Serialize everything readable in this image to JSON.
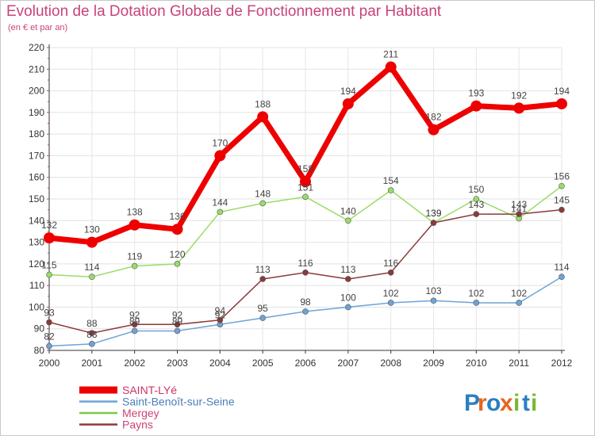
{
  "header": {
    "title": "Evolution de la Dotation Globale de Fonctionnement par Habitant",
    "subtitle": "(en € et par an)"
  },
  "logo": {
    "letters": [
      "P",
      "r",
      "o",
      "x",
      "i",
      "t",
      "i"
    ],
    "colors": [
      "#2a7fc1",
      "#e8641e",
      "#2a7fc1",
      "#e8641e",
      "#7ab82f",
      "#2a7fc1",
      "#7ab82f"
    ]
  },
  "chart_data": {
    "type": "line",
    "title": "Evolution de la Dotation Globale de Fonctionnement par Habitant",
    "subtitle": "(en € et par an)",
    "x": [
      "2000",
      "2001",
      "2002",
      "2003",
      "2004",
      "2005",
      "2006",
      "2007",
      "2008",
      "2009",
      "2010",
      "2011",
      "2012"
    ],
    "ylim": [
      80,
      220
    ],
    "yticks": [
      80,
      90,
      100,
      110,
      120,
      130,
      140,
      150,
      160,
      170,
      180,
      190,
      200,
      210,
      220
    ],
    "grid": true,
    "legend_position": "bottom-left",
    "series": [
      {
        "name": "SAINT-LYé",
        "color": "#ee0000",
        "legend_color": "#ee0000",
        "width": 7,
        "marker": 7,
        "values": [
          132,
          130,
          138,
          136,
          170,
          188,
          158,
          194,
          211,
          182,
          193,
          192,
          194
        ],
        "labels": [
          "132",
          "130",
          "138",
          "136",
          "170",
          "188",
          "158",
          "194",
          "211",
          "182",
          "193",
          "192",
          "194"
        ]
      },
      {
        "name": "Saint-Benoît-sur-Seine",
        "color": "#6fa3d6",
        "legend_color": "#6fa3d6",
        "width": 1.5,
        "marker": 3.5,
        "values": [
          82,
          83,
          89,
          89,
          92,
          95,
          98,
          100,
          102,
          103,
          102,
          102,
          114
        ],
        "labels": [
          "82",
          "83",
          "89",
          "89",
          "92",
          "95",
          "98",
          "100",
          "102",
          "103",
          "102",
          "102",
          "114"
        ]
      },
      {
        "name": "Mergey",
        "color": "#99dd66",
        "legend_color": "#77cc44",
        "width": 1.5,
        "marker": 3.5,
        "values": [
          115,
          114,
          119,
          120,
          144,
          148,
          151,
          140,
          154,
          139,
          150,
          141,
          156
        ],
        "labels": [
          "115",
          "114",
          "119",
          "120",
          "144",
          "148",
          "151",
          "140",
          "154",
          "139",
          "150",
          "141",
          "156"
        ]
      },
      {
        "name": "Payns",
        "color": "#8b3a3a",
        "legend_color": "#8b3a3a",
        "width": 1.5,
        "marker": 3.5,
        "values": [
          93,
          88,
          92,
          92,
          94,
          113,
          116,
          113,
          116,
          139,
          143,
          143,
          145
        ],
        "labels": [
          "93",
          "88",
          "92",
          "92",
          "94",
          "113",
          "116",
          "113",
          "116",
          "139",
          "143",
          "143",
          "145"
        ]
      }
    ]
  }
}
